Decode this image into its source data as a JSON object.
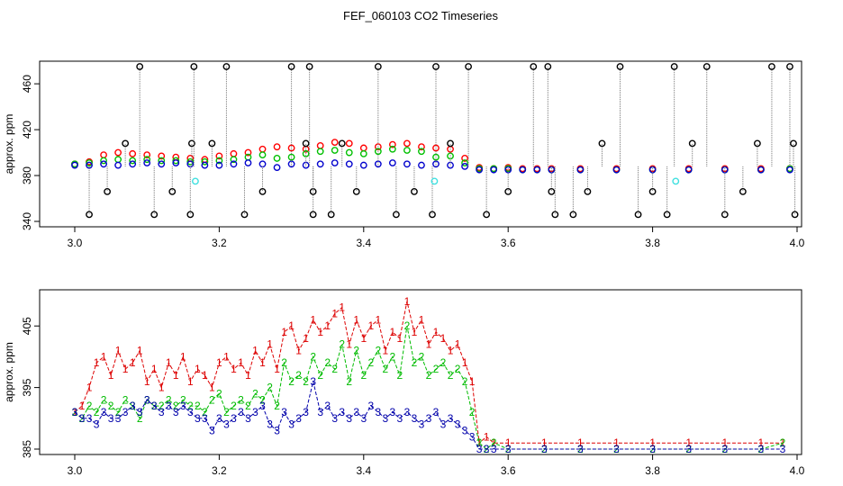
{
  "title": "FEF_060103  CO2 Timeseries",
  "chart_data": [
    {
      "type": "scatter",
      "ylabel": "approx. ppm",
      "xlim": [
        3.0,
        4.0
      ],
      "ylim": [
        340,
        475
      ],
      "xticks": [
        "3.0",
        "3.2",
        "3.4",
        "3.6",
        "3.8",
        "4.0"
      ],
      "yticks": [
        "340",
        "380",
        "420",
        "460"
      ],
      "series": [
        {
          "color": "#ff0000",
          "symbol": "circle",
          "x": [
            3.0,
            3.02,
            3.04,
            3.06,
            3.08,
            3.1,
            3.12,
            3.14,
            3.16,
            3.18,
            3.2,
            3.22,
            3.24,
            3.26,
            3.28,
            3.3,
            3.32,
            3.34,
            3.36,
            3.38,
            3.4,
            3.42,
            3.44,
            3.46,
            3.48,
            3.5,
            3.52,
            3.54,
            3.56,
            3.58,
            3.6,
            3.62,
            3.64,
            3.66,
            3.7,
            3.75,
            3.8,
            3.85,
            3.9,
            3.95,
            3.99
          ],
          "y": [
            390,
            392,
            398,
            400,
            399,
            398,
            397,
            396,
            395,
            394,
            397,
            399,
            400,
            403,
            405,
            404,
            403,
            406,
            409,
            408,
            404,
            405,
            407,
            408,
            405,
            404,
            403,
            395,
            387,
            386,
            387,
            386,
            386,
            386,
            386,
            386,
            386,
            386,
            386,
            386,
            386
          ]
        },
        {
          "color": "#00c000",
          "symbol": "circle",
          "x": [
            3.0,
            3.02,
            3.04,
            3.06,
            3.08,
            3.1,
            3.12,
            3.14,
            3.16,
            3.18,
            3.2,
            3.22,
            3.24,
            3.26,
            3.28,
            3.3,
            3.32,
            3.34,
            3.36,
            3.38,
            3.4,
            3.42,
            3.44,
            3.46,
            3.48,
            3.5,
            3.52,
            3.54,
            3.56,
            3.58,
            3.6,
            3.62,
            3.64,
            3.66,
            3.7,
            3.75,
            3.8,
            3.85,
            3.9,
            3.95,
            3.99
          ],
          "y": [
            390,
            391,
            393,
            394,
            393,
            394,
            393,
            393,
            392,
            392,
            393,
            394,
            396,
            398,
            395,
            396,
            399,
            401,
            402,
            400,
            399,
            401,
            403,
            402,
            401,
            396,
            397,
            391,
            386,
            386,
            386,
            385,
            385,
            385,
            385,
            385,
            385,
            385,
            385,
            385,
            386
          ]
        },
        {
          "color": "#0000cc",
          "symbol": "circle",
          "x": [
            3.0,
            3.02,
            3.04,
            3.06,
            3.08,
            3.1,
            3.12,
            3.14,
            3.16,
            3.18,
            3.2,
            3.22,
            3.24,
            3.26,
            3.28,
            3.3,
            3.32,
            3.34,
            3.36,
            3.38,
            3.4,
            3.42,
            3.44,
            3.46,
            3.48,
            3.5,
            3.52,
            3.54,
            3.56,
            3.58,
            3.6,
            3.62,
            3.64,
            3.66,
            3.7,
            3.75,
            3.8,
            3.85,
            3.9,
            3.95,
            3.99
          ],
          "y": [
            389,
            389,
            390,
            389,
            390,
            391,
            390,
            391,
            390,
            389,
            389,
            390,
            391,
            390,
            387,
            390,
            389,
            390,
            391,
            390,
            389,
            390,
            391,
            390,
            389,
            390,
            389,
            388,
            385,
            385,
            385,
            385,
            385,
            385,
            385,
            385,
            385,
            385,
            385,
            385,
            385
          ]
        },
        {
          "color": "#000000",
          "symbol": "circle",
          "x": [
            3.02,
            3.045,
            3.07,
            3.09,
            3.11,
            3.135,
            3.16,
            3.162,
            3.165,
            3.19,
            3.21,
            3.235,
            3.26,
            3.3,
            3.32,
            3.325,
            3.33,
            3.33,
            3.355,
            3.37,
            3.39,
            3.42,
            3.445,
            3.47,
            3.495,
            3.5,
            3.52,
            3.545,
            3.57,
            3.6,
            3.635,
            3.655,
            3.66,
            3.665,
            3.69,
            3.71,
            3.73,
            3.755,
            3.78,
            3.8,
            3.82,
            3.83,
            3.855,
            3.875,
            3.9,
            3.925,
            3.945,
            3.965,
            3.99,
            3.995,
            3.997
          ],
          "y": [
            346,
            366,
            408,
            477,
            346,
            366,
            346,
            408,
            477,
            408,
            477,
            346,
            366,
            477,
            408,
            477,
            366,
            346,
            346,
            408,
            366,
            477,
            346,
            366,
            346,
            477,
            408,
            477,
            346,
            366,
            477,
            477,
            366,
            346,
            346,
            366,
            408,
            477,
            346,
            366,
            346,
            477,
            408,
            477,
            346,
            366,
            408,
            477,
            477,
            408,
            346
          ]
        },
        {
          "color": "#40e0e0",
          "symbol": "circle",
          "x": [
            3.167,
            3.498,
            3.832
          ],
          "y": [
            375,
            375,
            375
          ]
        }
      ]
    },
    {
      "type": "line",
      "ylabel": "approx. ppm",
      "xlim": [
        3.0,
        4.0
      ],
      "ylim": [
        385,
        410
      ],
      "xticks": [
        "3.0",
        "3.2",
        "3.4",
        "3.6",
        "3.8",
        "4.0"
      ],
      "yticks": [
        "385",
        "395",
        "405"
      ],
      "series": [
        {
          "color": "#dd0000",
          "marker": "1",
          "x": [
            3.0,
            3.01,
            3.02,
            3.03,
            3.04,
            3.05,
            3.06,
            3.07,
            3.08,
            3.09,
            3.1,
            3.11,
            3.12,
            3.13,
            3.14,
            3.15,
            3.16,
            3.17,
            3.18,
            3.19,
            3.2,
            3.21,
            3.22,
            3.23,
            3.24,
            3.25,
            3.26,
            3.27,
            3.28,
            3.29,
            3.3,
            3.31,
            3.32,
            3.33,
            3.34,
            3.35,
            3.36,
            3.37,
            3.38,
            3.39,
            3.4,
            3.41,
            3.42,
            3.43,
            3.44,
            3.45,
            3.46,
            3.47,
            3.48,
            3.49,
            3.5,
            3.51,
            3.52,
            3.53,
            3.54,
            3.55,
            3.56,
            3.57,
            3.58,
            3.6,
            3.65,
            3.7,
            3.75,
            3.8,
            3.85,
            3.9,
            3.95,
            3.98
          ],
          "y": [
            391,
            392,
            395,
            399,
            400,
            397,
            401,
            398,
            399,
            401,
            396,
            398,
            395,
            399,
            397,
            400,
            396,
            398,
            397,
            395,
            399,
            400,
            398,
            399,
            397,
            401,
            399,
            402,
            398,
            404,
            405,
            401,
            403,
            406,
            404,
            405,
            407,
            408,
            402,
            406,
            403,
            405,
            406,
            401,
            404,
            403,
            409,
            404,
            406,
            402,
            404,
            403,
            401,
            402,
            399,
            396,
            386,
            387,
            386,
            386,
            386,
            386,
            386,
            386,
            386,
            386,
            386,
            386
          ]
        },
        {
          "color": "#00bb00",
          "marker": "2",
          "x": [
            3.0,
            3.01,
            3.02,
            3.03,
            3.04,
            3.05,
            3.06,
            3.07,
            3.08,
            3.09,
            3.1,
            3.11,
            3.12,
            3.13,
            3.14,
            3.15,
            3.16,
            3.17,
            3.18,
            3.19,
            3.2,
            3.21,
            3.22,
            3.23,
            3.24,
            3.25,
            3.26,
            3.27,
            3.28,
            3.29,
            3.3,
            3.31,
            3.32,
            3.33,
            3.34,
            3.35,
            3.36,
            3.37,
            3.38,
            3.39,
            3.4,
            3.41,
            3.42,
            3.43,
            3.44,
            3.45,
            3.46,
            3.47,
            3.48,
            3.49,
            3.5,
            3.51,
            3.52,
            3.53,
            3.54,
            3.55,
            3.56,
            3.57,
            3.58,
            3.6,
            3.65,
            3.7,
            3.75,
            3.8,
            3.85,
            3.9,
            3.95,
            3.98
          ],
          "y": [
            391,
            390,
            392,
            391,
            393,
            392,
            391,
            393,
            392,
            390,
            393,
            392,
            392,
            393,
            392,
            393,
            392,
            392,
            391,
            393,
            394,
            391,
            392,
            393,
            392,
            394,
            393,
            395,
            392,
            399,
            396,
            397,
            396,
            400,
            397,
            399,
            398,
            402,
            396,
            401,
            397,
            399,
            401,
            398,
            400,
            397,
            405,
            399,
            400,
            397,
            398,
            399,
            397,
            398,
            396,
            391,
            386,
            385,
            386,
            385,
            385,
            385,
            385,
            385,
            385,
            385,
            385,
            386
          ]
        },
        {
          "color": "#0000aa",
          "marker": "3",
          "x": [
            3.0,
            3.01,
            3.02,
            3.03,
            3.04,
            3.05,
            3.06,
            3.07,
            3.08,
            3.09,
            3.1,
            3.11,
            3.12,
            3.13,
            3.14,
            3.15,
            3.16,
            3.17,
            3.18,
            3.19,
            3.2,
            3.21,
            3.22,
            3.23,
            3.24,
            3.25,
            3.26,
            3.27,
            3.28,
            3.29,
            3.3,
            3.31,
            3.32,
            3.33,
            3.34,
            3.35,
            3.36,
            3.37,
            3.38,
            3.39,
            3.4,
            3.41,
            3.42,
            3.43,
            3.44,
            3.45,
            3.46,
            3.47,
            3.48,
            3.49,
            3.5,
            3.51,
            3.52,
            3.53,
            3.54,
            3.55,
            3.56,
            3.57,
            3.58,
            3.6,
            3.65,
            3.7,
            3.75,
            3.8,
            3.85,
            3.9,
            3.95,
            3.98
          ],
          "y": [
            391,
            390,
            390,
            389,
            391,
            390,
            390,
            391,
            392,
            391,
            393,
            392,
            391,
            392,
            391,
            392,
            391,
            390,
            390,
            388,
            390,
            389,
            390,
            391,
            390,
            391,
            392,
            389,
            388,
            391,
            389,
            390,
            391,
            396,
            391,
            392,
            390,
            391,
            390,
            391,
            390,
            392,
            391,
            390,
            391,
            390,
            391,
            390,
            389,
            390,
            391,
            389,
            390,
            389,
            388,
            387,
            385,
            385,
            385,
            385,
            385,
            385,
            385,
            385,
            385,
            385,
            385,
            385
          ]
        }
      ]
    }
  ]
}
